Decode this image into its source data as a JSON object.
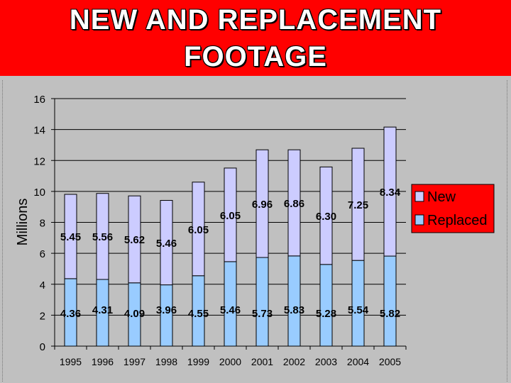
{
  "header": {
    "title_line1": "NEW AND REPLACEMENT",
    "title_line2": "FOOTAGE"
  },
  "colors": {
    "header_bg": "#ff0000",
    "page_bg": "#c0c0c0",
    "new": "#ccccff",
    "replaced": "#99ccff",
    "legend_bg": "#ff0000"
  },
  "chart_data": {
    "type": "bar",
    "stacked": true,
    "ylabel": "Millions",
    "ylim": [
      0,
      16
    ],
    "yticks": [
      0,
      2,
      4,
      6,
      8,
      10,
      12,
      14,
      16
    ],
    "grid": "horizontal",
    "legend_position": "right",
    "categories": [
      "1995",
      "1996",
      "1997",
      "1998",
      "1999",
      "2000",
      "2001",
      "2002",
      "2003",
      "2004",
      "2005"
    ],
    "series": [
      {
        "name": "Replaced",
        "values": [
          4.36,
          4.31,
          4.09,
          3.96,
          4.55,
          5.46,
          5.73,
          5.83,
          5.28,
          5.54,
          5.82
        ],
        "labels": [
          "4.36",
          "4.31",
          "4.09",
          "3.96",
          "4.55",
          "5.46",
          "5.73",
          "5.83",
          "5.28",
          "5.54",
          "5.82"
        ]
      },
      {
        "name": "New",
        "values": [
          5.45,
          5.56,
          5.62,
          5.46,
          6.05,
          6.05,
          6.96,
          6.86,
          6.3,
          7.25,
          8.34
        ],
        "labels": [
          "5.45",
          "5.56",
          "5.62",
          "5.46",
          "6.05",
          "6.05",
          "6.96",
          "6.86",
          "6.30",
          "7.25",
          "8.34"
        ]
      }
    ]
  }
}
